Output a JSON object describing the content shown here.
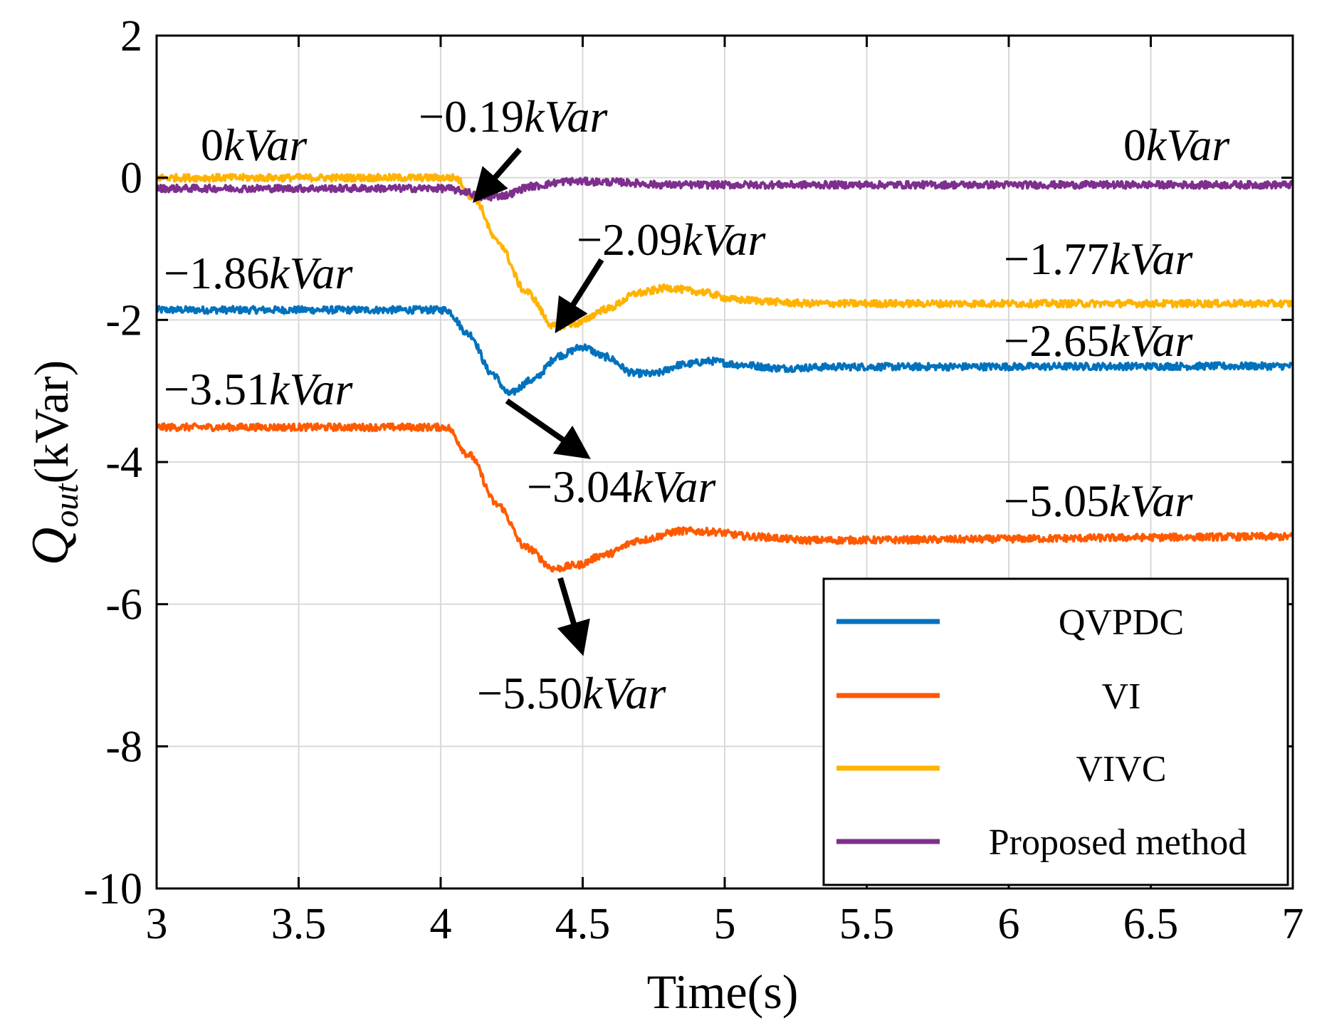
{
  "chart_data": {
    "type": "line",
    "xlabel": "Time(s)",
    "ylabel": {
      "symbol": "Q",
      "subscript": "out",
      "unit": "(kVar)"
    },
    "xlim": [
      3,
      7
    ],
    "ylim": [
      -10,
      2
    ],
    "xticks": [
      "3",
      "3.5",
      "4",
      "4.5",
      "5",
      "5.5",
      "6",
      "6.5",
      "7"
    ],
    "xtick_values": [
      3,
      3.5,
      4,
      4.5,
      5,
      5.5,
      6,
      6.5,
      7
    ],
    "yticks": [
      "2",
      "0",
      "-2",
      "-4",
      "-6",
      "-8",
      "-10"
    ],
    "ytick_values": [
      2,
      0,
      -2,
      -4,
      -6,
      -8,
      -10
    ],
    "grid": true,
    "legend_position": "bottom-right",
    "series": [
      {
        "name": "QVPDC",
        "color": "#0072BD",
        "points": [
          [
            3,
            -1.86
          ],
          [
            4.02,
            -1.86
          ],
          [
            4.1,
            -2.2
          ],
          [
            4.18,
            -2.75
          ],
          [
            4.24,
            -3.04
          ],
          [
            4.32,
            -2.85
          ],
          [
            4.42,
            -2.5
          ],
          [
            4.5,
            -2.38
          ],
          [
            4.58,
            -2.52
          ],
          [
            4.68,
            -2.75
          ],
          [
            4.75,
            -2.76
          ],
          [
            4.85,
            -2.63
          ],
          [
            4.95,
            -2.58
          ],
          [
            5.05,
            -2.63
          ],
          [
            5.2,
            -2.68
          ],
          [
            5.4,
            -2.66
          ],
          [
            7,
            -2.65
          ]
        ],
        "noise": 0.05
      },
      {
        "name": "VI",
        "color": "#FF5A00",
        "points": [
          [
            3,
            -3.51
          ],
          [
            4.02,
            -3.51
          ],
          [
            4.1,
            -3.9
          ],
          [
            4.2,
            -4.6
          ],
          [
            4.3,
            -5.2
          ],
          [
            4.4,
            -5.5
          ],
          [
            4.48,
            -5.45
          ],
          [
            4.58,
            -5.3
          ],
          [
            4.7,
            -5.1
          ],
          [
            4.85,
            -4.97
          ],
          [
            4.95,
            -4.98
          ],
          [
            5.1,
            -5.05
          ],
          [
            5.3,
            -5.1
          ],
          [
            7,
            -5.05
          ]
        ],
        "noise": 0.05
      },
      {
        "name": "VIVC",
        "color": "#FFB300",
        "points": [
          [
            3,
            0
          ],
          [
            4.05,
            0
          ],
          [
            4.12,
            -0.3
          ],
          [
            4.2,
            -0.9
          ],
          [
            4.3,
            -1.6
          ],
          [
            4.4,
            -2.09
          ],
          [
            4.48,
            -2.05
          ],
          [
            4.58,
            -1.85
          ],
          [
            4.7,
            -1.62
          ],
          [
            4.8,
            -1.55
          ],
          [
            4.9,
            -1.6
          ],
          [
            5.05,
            -1.72
          ],
          [
            5.3,
            -1.77
          ],
          [
            7,
            -1.77
          ]
        ],
        "noise": 0.05
      },
      {
        "name": "Proposed method",
        "color": "#7E2F8E",
        "points": [
          [
            3,
            -0.15
          ],
          [
            4.02,
            -0.15
          ],
          [
            4.08,
            -0.19
          ],
          [
            4.15,
            -0.28
          ],
          [
            4.22,
            -0.25
          ],
          [
            4.32,
            -0.12
          ],
          [
            4.45,
            -0.05
          ],
          [
            4.6,
            -0.06
          ],
          [
            4.8,
            -0.1
          ],
          [
            7,
            -0.1
          ]
        ],
        "noise": 0.05
      }
    ],
    "annotations": [
      {
        "value": "0",
        "unit": "kVar"
      },
      {
        "value": "−0.19",
        "unit": "kVar"
      },
      {
        "value": "0",
        "unit": "kVar"
      },
      {
        "value": "−2.09",
        "unit": "kVar"
      },
      {
        "value": "−1.77",
        "unit": "kVar"
      },
      {
        "value": "−1.86",
        "unit": "kVar"
      },
      {
        "value": "−2.65",
        "unit": "kVar"
      },
      {
        "value": "−3.51",
        "unit": "kVar"
      },
      {
        "value": "−3.04",
        "unit": "kVar"
      },
      {
        "value": "−5.05",
        "unit": "kVar"
      },
      {
        "value": "−5.50",
        "unit": "kVar"
      }
    ]
  }
}
